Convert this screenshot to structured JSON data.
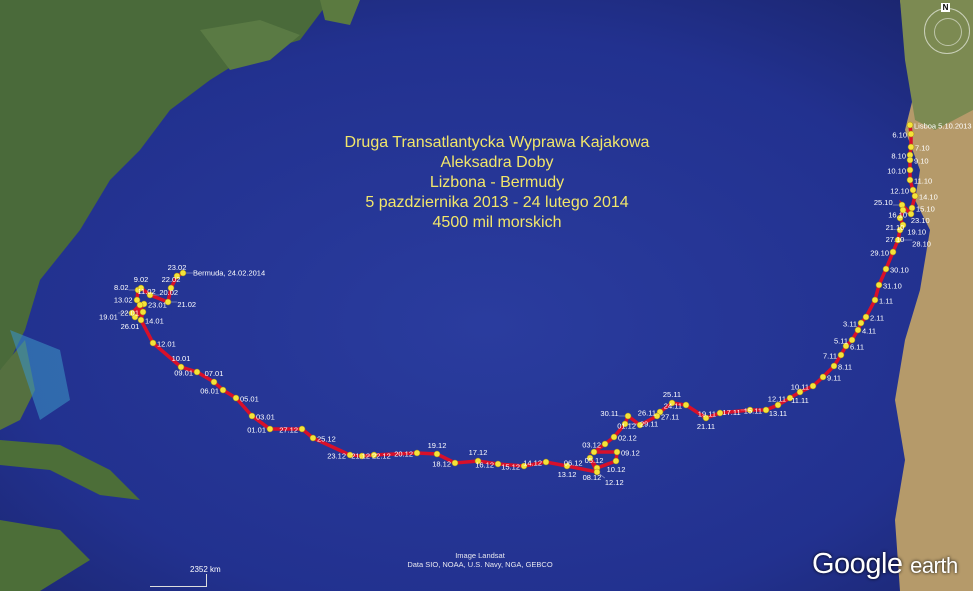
{
  "title_lines": [
    "Druga Transatlantycka Wyprawa Kajakowa",
    "Aleksadra Doby",
    "Lizbona - Bermudy",
    "5 pazdziernika 2013 - 24 lutego 2014",
    "4500 mil morskich"
  ],
  "credits": {
    "line1": "Image Landsat",
    "line2": "Data SIO, NOAA, U.S. Navy, NGA, GEBCO"
  },
  "scale_label": "2352 km",
  "logo": {
    "google": "Google",
    "earth": "earth"
  },
  "compass_label": "N",
  "colors": {
    "ocean": "#22318f",
    "route": "#d8102a",
    "marker": "#f5e33a",
    "title": "#f2e66a"
  },
  "waypoints": [
    "Lisboa 5.10.2013",
    "6.10",
    "7.10",
    "8.10",
    "9.10",
    "10.10",
    "11.10",
    "12.10",
    "14.10",
    "15.10",
    "16.10",
    "25.10",
    "23.10",
    "21.10",
    "19.10",
    "27.10",
    "28.10",
    "29.10",
    "30.10",
    "31.10",
    "1.11",
    "2.11",
    "3.11",
    "4.11",
    "5.11",
    "6.11",
    "7.11",
    "8.11",
    "9.11",
    "10.11",
    "11.11",
    "12.11",
    "13.11",
    "15.11",
    "17.11",
    "19.11",
    "21.11",
    "24.11",
    "25.11",
    "26.11",
    "27.11",
    "01.12",
    "30.11",
    "29.11",
    "02.12",
    "03.12",
    "05.12",
    "09.12",
    "10.12",
    "08.12",
    "06.12",
    "12.12",
    "13.12",
    "14.12",
    "15.12",
    "16.12",
    "17.12",
    "18.12",
    "19.12",
    "20.12",
    "21.12",
    "22.12",
    "23.12",
    "25.12",
    "27.12",
    "01.01",
    "03.01",
    "05.01",
    "06.01",
    "07.01",
    "09.01",
    "10.01",
    "12.01",
    "14.01",
    "22.01",
    "26.01",
    "23.01",
    "19.01",
    "13.02",
    "11.02",
    "8.02",
    "9.02",
    "20.02",
    "21.02",
    "22.02",
    "23.02",
    "Bermuda, 24.02.2014"
  ]
}
